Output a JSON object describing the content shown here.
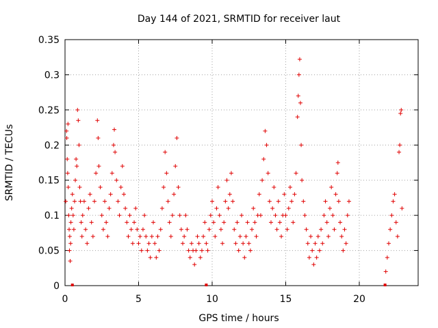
{
  "chart_data": {
    "type": "scatter",
    "title": "Day 144 of 2021, SRMTID for receiver laut",
    "xlabel": "GPS time / hours",
    "ylabel": "SRMTID / TECUs",
    "xlim": [
      0,
      24
    ],
    "ylim": [
      0,
      0.35
    ],
    "xticks": [
      0,
      5,
      10,
      15,
      20
    ],
    "yticks": [
      0,
      0.05,
      0.1,
      0.15,
      0.2,
      0.25,
      0.3,
      0.35
    ],
    "xtick_labels": [
      "0",
      "5",
      "10",
      "15",
      "20"
    ],
    "ytick_labels": [
      "0",
      "0.05",
      "0.1",
      "0.15",
      "0.2",
      "0.25",
      "0.3",
      "0.35"
    ],
    "grid": true,
    "marker": "+",
    "color": "#e00000",
    "series": [
      {
        "name": "SRMTID",
        "points": [
          [
            0.05,
            0.12
          ],
          [
            0.1,
            0.22
          ],
          [
            0.12,
            0.21
          ],
          [
            0.15,
            0.18
          ],
          [
            0.18,
            0.16
          ],
          [
            0.2,
            0.23
          ],
          [
            0.22,
            0.14
          ],
          [
            0.25,
            0.1
          ],
          [
            0.28,
            0.08
          ],
          [
            0.3,
            0.05
          ],
          [
            0.32,
            0.07
          ],
          [
            0.35,
            0.035
          ],
          [
            0.38,
            0.06
          ],
          [
            0.4,
            0.09
          ],
          [
            0.45,
            0.11
          ],
          [
            0.5,
            0.13
          ],
          [
            0.55,
            0.1
          ],
          [
            0.6,
            0.08
          ],
          [
            0.65,
            0.12
          ],
          [
            0.7,
            0.15
          ],
          [
            0.75,
            0.18
          ],
          [
            0.8,
            0.17
          ],
          [
            0.85,
            0.25
          ],
          [
            0.9,
            0.235
          ],
          [
            0.95,
            0.2
          ],
          [
            1.0,
            0.14
          ],
          [
            1.05,
            0.12
          ],
          [
            1.1,
            0.09
          ],
          [
            1.15,
            0.07
          ],
          [
            1.2,
            0.1
          ],
          [
            1.3,
            0.12
          ],
          [
            1.4,
            0.08
          ],
          [
            1.5,
            0.06
          ],
          [
            1.6,
            0.11
          ],
          [
            1.7,
            0.13
          ],
          [
            1.8,
            0.09
          ],
          [
            1.9,
            0.07
          ],
          [
            2.0,
            0.12
          ],
          [
            2.1,
            0.16
          ],
          [
            2.2,
            0.235
          ],
          [
            2.25,
            0.21
          ],
          [
            2.3,
            0.17
          ],
          [
            2.4,
            0.14
          ],
          [
            2.5,
            0.1
          ],
          [
            2.6,
            0.08
          ],
          [
            2.7,
            0.12
          ],
          [
            2.8,
            0.09
          ],
          [
            2.9,
            0.07
          ],
          [
            3.0,
            0.11
          ],
          [
            3.1,
            0.13
          ],
          [
            3.2,
            0.16
          ],
          [
            3.3,
            0.2
          ],
          [
            3.35,
            0.222
          ],
          [
            3.4,
            0.19
          ],
          [
            3.5,
            0.15
          ],
          [
            3.6,
            0.12
          ],
          [
            3.7,
            0.1
          ],
          [
            3.8,
            0.14
          ],
          [
            3.9,
            0.17
          ],
          [
            4.0,
            0.13
          ],
          [
            4.1,
            0.11
          ],
          [
            4.2,
            0.09
          ],
          [
            4.3,
            0.07
          ],
          [
            4.4,
            0.1
          ],
          [
            4.5,
            0.08
          ],
          [
            4.6,
            0.06
          ],
          [
            4.7,
            0.09
          ],
          [
            4.8,
            0.11
          ],
          [
            4.9,
            0.08
          ],
          [
            5.0,
            0.06
          ],
          [
            5.1,
            0.07
          ],
          [
            5.2,
            0.05
          ],
          [
            5.3,
            0.08
          ],
          [
            5.4,
            0.1
          ],
          [
            5.5,
            0.07
          ],
          [
            5.6,
            0.05
          ],
          [
            5.7,
            0.06
          ],
          [
            5.8,
            0.04
          ],
          [
            5.9,
            0.07
          ],
          [
            6.0,
            0.09
          ],
          [
            6.1,
            0.06
          ],
          [
            6.2,
            0.04
          ],
          [
            6.3,
            0.07
          ],
          [
            6.4,
            0.05
          ],
          [
            6.5,
            0.08
          ],
          [
            6.6,
            0.11
          ],
          [
            6.7,
            0.14
          ],
          [
            6.8,
            0.19
          ],
          [
            6.9,
            0.16
          ],
          [
            7.0,
            0.12
          ],
          [
            7.1,
            0.09
          ],
          [
            7.2,
            0.07
          ],
          [
            7.3,
            0.1
          ],
          [
            7.4,
            0.13
          ],
          [
            7.5,
            0.17
          ],
          [
            7.6,
            0.21
          ],
          [
            7.7,
            0.14
          ],
          [
            7.8,
            0.1
          ],
          [
            7.9,
            0.08
          ],
          [
            8.0,
            0.06
          ],
          [
            8.1,
            0.07
          ],
          [
            8.2,
            0.1
          ],
          [
            8.3,
            0.08
          ],
          [
            8.4,
            0.05
          ],
          [
            8.5,
            0.04
          ],
          [
            8.6,
            0.06
          ],
          [
            8.7,
            0.05
          ],
          [
            8.8,
            0.03
          ],
          [
            8.9,
            0.05
          ],
          [
            9.0,
            0.07
          ],
          [
            9.1,
            0.06
          ],
          [
            9.2,
            0.04
          ],
          [
            9.3,
            0.05
          ],
          [
            9.4,
            0.07
          ],
          [
            9.5,
            0.09
          ],
          [
            9.6,
            0.06
          ],
          [
            9.7,
            0.05
          ],
          [
            9.8,
            0.08
          ],
          [
            9.9,
            0.1
          ],
          [
            10.0,
            0.12
          ],
          [
            10.1,
            0.09
          ],
          [
            10.2,
            0.07
          ],
          [
            10.3,
            0.11
          ],
          [
            10.4,
            0.14
          ],
          [
            10.5,
            0.1
          ],
          [
            10.6,
            0.08
          ],
          [
            10.7,
            0.06
          ],
          [
            10.8,
            0.09
          ],
          [
            10.9,
            0.12
          ],
          [
            11.0,
            0.15
          ],
          [
            11.1,
            0.11
          ],
          [
            11.2,
            0.13
          ],
          [
            11.3,
            0.16
          ],
          [
            11.4,
            0.12
          ],
          [
            11.5,
            0.08
          ],
          [
            11.6,
            0.06
          ],
          [
            11.7,
            0.09
          ],
          [
            11.8,
            0.05
          ],
          [
            11.9,
            0.07
          ],
          [
            12.0,
            0.1
          ],
          [
            12.1,
            0.06
          ],
          [
            12.2,
            0.04
          ],
          [
            12.3,
            0.07
          ],
          [
            12.4,
            0.09
          ],
          [
            12.5,
            0.06
          ],
          [
            12.6,
            0.05
          ],
          [
            12.7,
            0.08
          ],
          [
            12.8,
            0.11
          ],
          [
            12.9,
            0.09
          ],
          [
            13.0,
            0.07
          ],
          [
            13.1,
            0.1
          ],
          [
            13.2,
            0.13
          ],
          [
            13.3,
            0.1
          ],
          [
            13.4,
            0.15
          ],
          [
            13.5,
            0.18
          ],
          [
            13.6,
            0.22
          ],
          [
            13.7,
            0.2
          ],
          [
            13.8,
            0.16
          ],
          [
            13.9,
            0.12
          ],
          [
            14.0,
            0.09
          ],
          [
            14.1,
            0.11
          ],
          [
            14.2,
            0.14
          ],
          [
            14.3,
            0.1
          ],
          [
            14.4,
            0.08
          ],
          [
            14.5,
            0.12
          ],
          [
            14.6,
            0.09
          ],
          [
            14.7,
            0.07
          ],
          [
            14.8,
            0.1
          ],
          [
            14.9,
            0.13
          ],
          [
            15.0,
            0.1
          ],
          [
            15.1,
            0.08
          ],
          [
            15.2,
            0.11
          ],
          [
            15.3,
            0.14
          ],
          [
            15.4,
            0.12
          ],
          [
            15.5,
            0.09
          ],
          [
            15.6,
            0.13
          ],
          [
            15.7,
            0.16
          ],
          [
            15.8,
            0.24
          ],
          [
            15.85,
            0.27
          ],
          [
            15.9,
            0.3
          ],
          [
            15.95,
            0.322
          ],
          [
            16.0,
            0.26
          ],
          [
            16.05,
            0.2
          ],
          [
            16.1,
            0.15
          ],
          [
            16.2,
            0.12
          ],
          [
            16.3,
            0.1
          ],
          [
            16.4,
            0.08
          ],
          [
            16.5,
            0.06
          ],
          [
            16.6,
            0.04
          ],
          [
            16.7,
            0.07
          ],
          [
            16.8,
            0.05
          ],
          [
            16.9,
            0.03
          ],
          [
            17.0,
            0.06
          ],
          [
            17.1,
            0.04
          ],
          [
            17.2,
            0.07
          ],
          [
            17.3,
            0.05
          ],
          [
            17.4,
            0.08
          ],
          [
            17.5,
            0.06
          ],
          [
            17.6,
            0.1
          ],
          [
            17.7,
            0.12
          ],
          [
            17.8,
            0.09
          ],
          [
            17.9,
            0.07
          ],
          [
            18.0,
            0.11
          ],
          [
            18.1,
            0.14
          ],
          [
            18.2,
            0.1
          ],
          [
            18.3,
            0.08
          ],
          [
            18.4,
            0.13
          ],
          [
            18.5,
            0.16
          ],
          [
            18.55,
            0.175
          ],
          [
            18.6,
            0.12
          ],
          [
            18.7,
            0.09
          ],
          [
            18.8,
            0.07
          ],
          [
            18.9,
            0.05
          ],
          [
            19.0,
            0.08
          ],
          [
            19.1,
            0.06
          ],
          [
            19.2,
            0.1
          ],
          [
            19.3,
            0.12
          ],
          [
            21.8,
            0.02
          ],
          [
            21.9,
            0.04
          ],
          [
            22.0,
            0.06
          ],
          [
            22.1,
            0.08
          ],
          [
            22.2,
            0.1
          ],
          [
            22.3,
            0.12
          ],
          [
            22.4,
            0.13
          ],
          [
            22.5,
            0.09
          ],
          [
            22.6,
            0.07
          ],
          [
            22.7,
            0.19
          ],
          [
            22.75,
            0.2
          ],
          [
            22.8,
            0.245
          ],
          [
            22.85,
            0.25
          ],
          [
            22.9,
            0.11
          ]
        ]
      }
    ],
    "gap_markers_x": [
      0.5,
      9.6,
      21.75
    ]
  }
}
